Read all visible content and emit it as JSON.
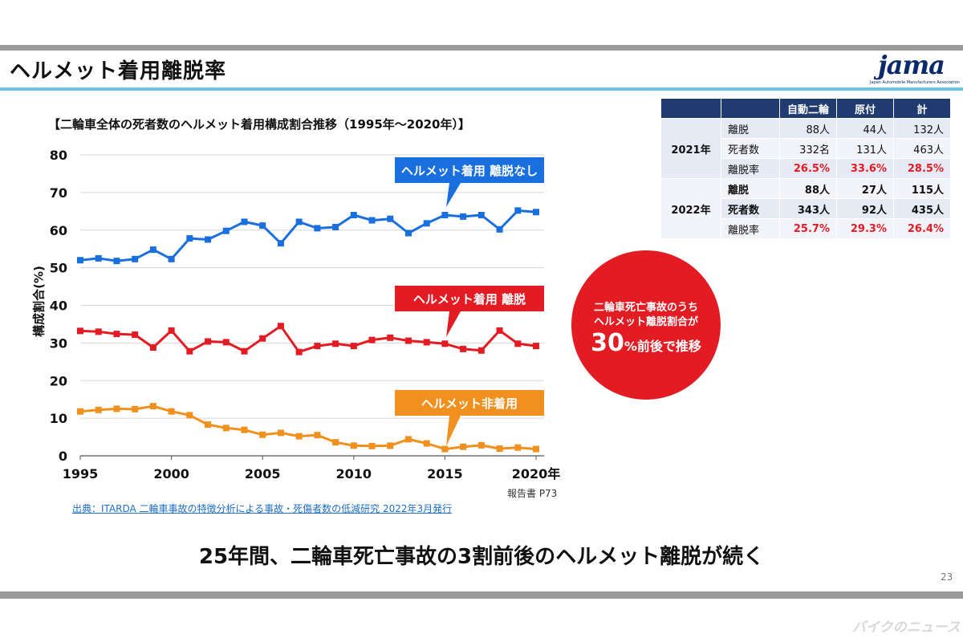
{
  "page": {
    "title": "ヘルメット着用離脱率",
    "logo_text": "jama",
    "logo_tagline": "Japan Automobile Manufacturers Association",
    "conclusion": "25年間、二輪車死亡事故の3割前後のヘルメット離脱が続く",
    "page_number": "23",
    "watermark": "バイクのニュース"
  },
  "chart_data": {
    "type": "line",
    "title": "【二輪車全体の死者数のヘルメット着用構成割合推移（1995年～2020年）】",
    "ylabel": "構成割合(%)",
    "xlabel": "",
    "ylim": [
      0,
      80
    ],
    "yticks": [
      "0",
      "10",
      "20",
      "30",
      "40",
      "50",
      "60",
      "70",
      "80"
    ],
    "xlim": [
      1995,
      2020
    ],
    "xticks": [
      "1995",
      "2000",
      "2005",
      "2010",
      "2015",
      "2020年"
    ],
    "x": [
      1995,
      1996,
      1997,
      1998,
      1999,
      2000,
      2001,
      2002,
      2003,
      2004,
      2005,
      2006,
      2007,
      2008,
      2009,
      2010,
      2011,
      2012,
      2013,
      2014,
      2015,
      2016,
      2017,
      2018,
      2019,
      2020
    ],
    "grid": true,
    "legend": "callouts",
    "series": [
      {
        "name": "ヘルメット着用 離脱なし",
        "color": "#1a6fdf",
        "values": [
          52.0,
          52.5,
          51.8,
          52.3,
          54.8,
          52.3,
          57.8,
          57.5,
          59.8,
          62.2,
          61.2,
          56.5,
          62.2,
          60.5,
          60.8,
          64.0,
          62.6,
          63.0,
          59.2,
          61.8,
          64.0,
          63.6,
          64.0,
          60.2,
          65.2,
          64.8
        ]
      },
      {
        "name": "ヘルメット着用 離脱",
        "color": "#e31b23",
        "values": [
          33.2,
          33.0,
          32.4,
          32.2,
          28.8,
          33.3,
          27.8,
          30.4,
          30.2,
          27.8,
          31.2,
          34.5,
          27.6,
          29.2,
          29.8,
          29.2,
          30.8,
          31.4,
          30.6,
          30.2,
          29.8,
          28.4,
          28.0,
          33.3,
          29.8,
          29.2
        ]
      },
      {
        "name": "ヘルメット非着用",
        "color": "#f0901e",
        "values": [
          11.8,
          12.2,
          12.5,
          12.4,
          13.2,
          11.8,
          10.8,
          8.3,
          7.4,
          6.9,
          5.6,
          6.1,
          5.2,
          5.5,
          3.6,
          2.7,
          2.6,
          2.7,
          4.4,
          3.3,
          1.8,
          2.4,
          2.8,
          1.9,
          2.2,
          1.8
        ]
      }
    ],
    "report_ref": "報告書 P73",
    "source": "出典：ITARDA 二輪車事故の特徴分析による事故・死傷者数の低減研究 2022年3月発行"
  },
  "callout": {
    "line1": "二輪車死亡事故のうち",
    "line2": "ヘルメット離脱割合が",
    "big": "30",
    "suffix": "%前後で推移"
  },
  "table": {
    "headers": [
      "",
      "",
      "自動二輪",
      "原付",
      "計"
    ],
    "years": [
      {
        "year": "2021年",
        "rows": [
          {
            "label": "離脱",
            "values": [
              "88人",
              "44人",
              "132人"
            ]
          },
          {
            "label": "死者数",
            "values": [
              "332名",
              "131人",
              "463人"
            ]
          },
          {
            "label": "離脱率",
            "values": [
              "26.5%",
              "33.6%",
              "28.5%"
            ]
          }
        ]
      },
      {
        "year": "2022年",
        "rows": [
          {
            "label": "離脱",
            "values": [
              "88人",
              "27人",
              "115人"
            ]
          },
          {
            "label": "死者数",
            "values": [
              "343人",
              "92人",
              "435人"
            ]
          },
          {
            "label": "離脱率",
            "values": [
              "25.7%",
              "29.3%",
              "26.4%"
            ]
          }
        ]
      }
    ]
  }
}
